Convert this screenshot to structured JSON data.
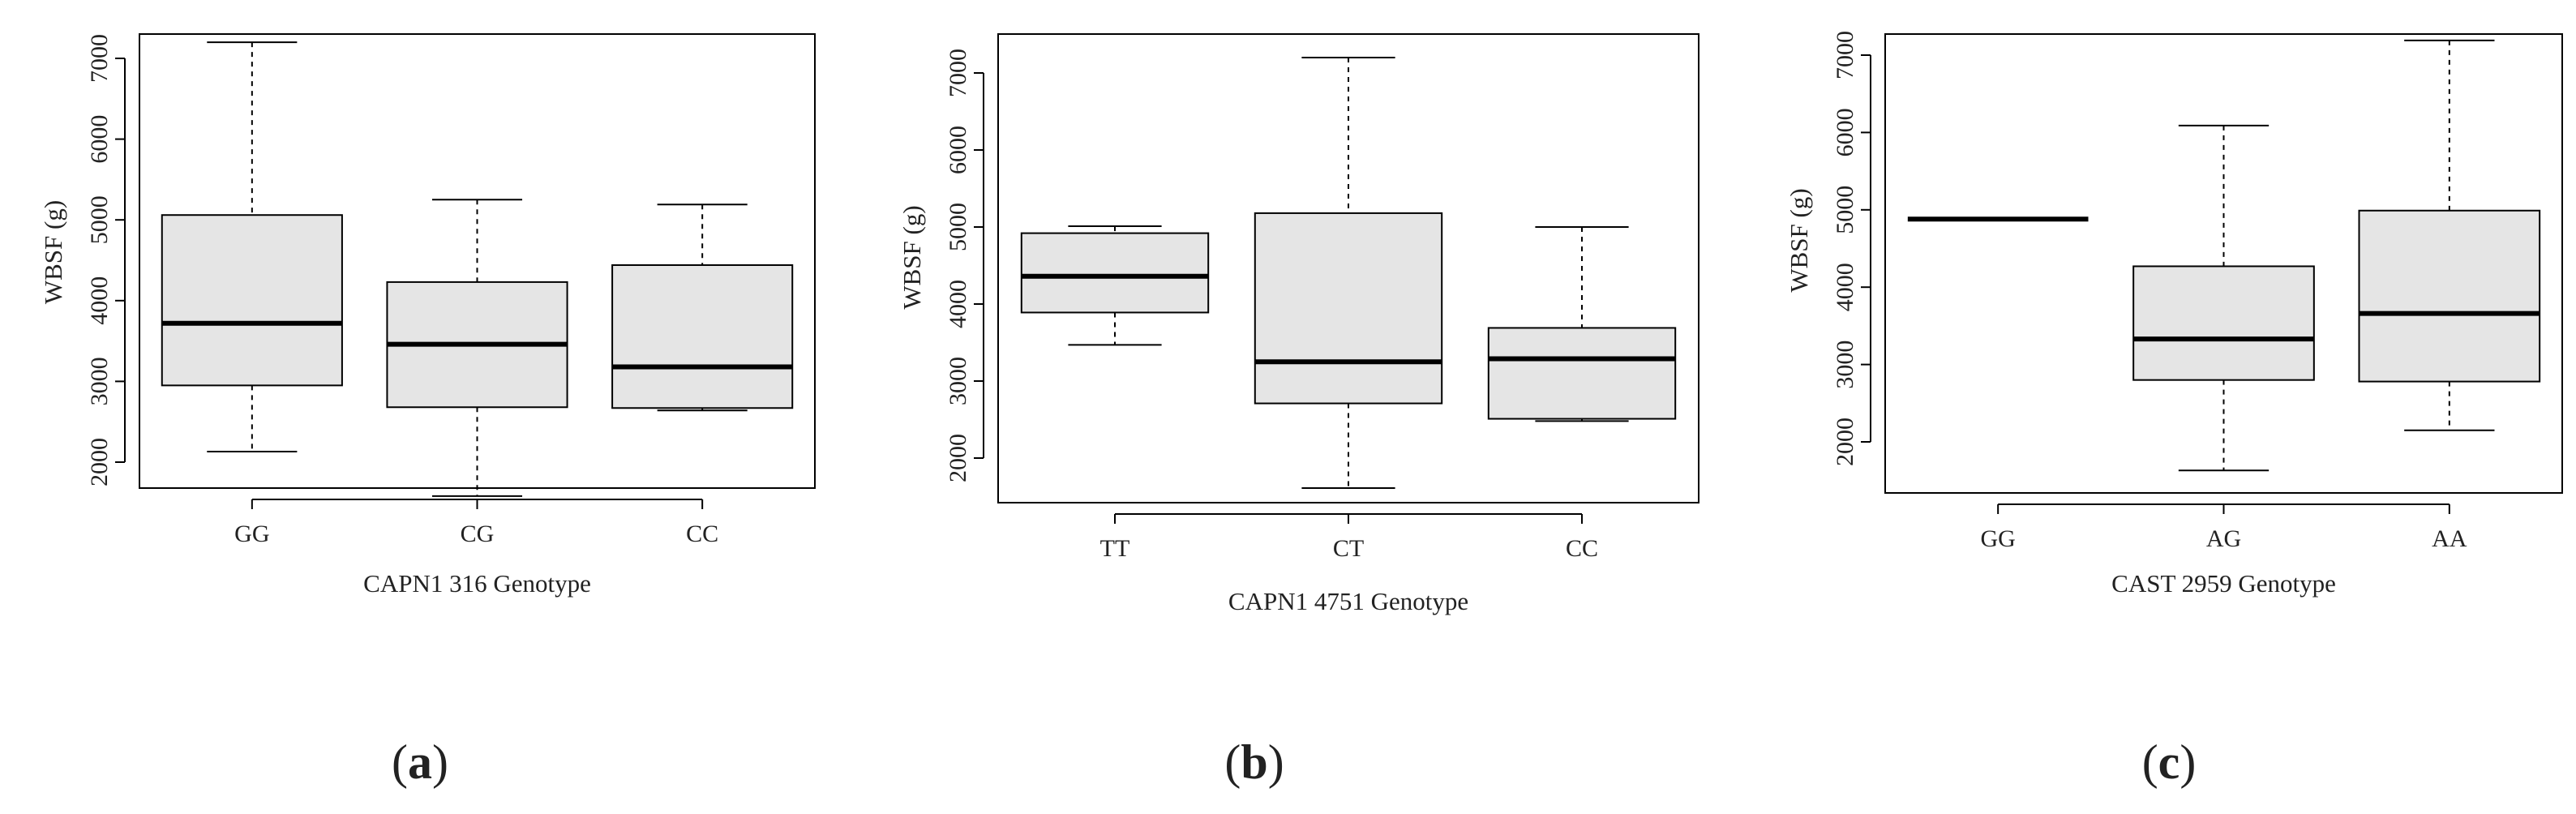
{
  "chart_data": [
    {
      "type": "box",
      "panel_label": "a",
      "xlabel": "CAPN1 316 Genotype",
      "ylabel": "WBSF (g)",
      "ylim": [
        1400,
        7400
      ],
      "yticks": [
        2000,
        3000,
        4000,
        5000,
        6000,
        7000
      ],
      "categories": [
        "GG",
        "CG",
        "CC"
      ],
      "boxes": [
        {
          "category": "GG",
          "min": 2130,
          "q1": 2950,
          "median": 3720,
          "q3": 5060,
          "max": 7200
        },
        {
          "category": "CG",
          "min": 1580,
          "q1": 2680,
          "median": 3460,
          "q3": 4230,
          "max": 5250
        },
        {
          "category": "CC",
          "min": 2640,
          "q1": 2670,
          "median": 3180,
          "q3": 4440,
          "max": 5190
        }
      ],
      "fill_color": "#e5e5e5"
    },
    {
      "type": "box",
      "panel_label": "b",
      "xlabel": "CAPN1 4751 Genotype",
      "ylabel": "WBSF (g)",
      "ylim": [
        1400,
        7400
      ],
      "yticks": [
        2000,
        3000,
        4000,
        5000,
        6000,
        7000
      ],
      "categories": [
        "TT",
        "CT",
        "CC"
      ],
      "boxes": [
        {
          "category": "TT",
          "min": 3470,
          "q1": 3890,
          "median": 4360,
          "q3": 4920,
          "max": 5010
        },
        {
          "category": "CT",
          "min": 1610,
          "q1": 2710,
          "median": 3250,
          "q3": 5180,
          "max": 7200
        },
        {
          "category": "CC",
          "min": 2480,
          "q1": 2510,
          "median": 3290,
          "q3": 3690,
          "max": 5000
        }
      ],
      "fill_color": "#e5e5e5"
    },
    {
      "type": "box",
      "panel_label": "c",
      "xlabel": "CAST 2959 Genotype",
      "ylabel": "WBSF (g)",
      "ylim": [
        1400,
        7400
      ],
      "yticks": [
        2000,
        3000,
        4000,
        5000,
        6000,
        7000
      ],
      "categories": [
        "GG",
        "AG",
        "AA"
      ],
      "boxes": [
        {
          "category": "GG",
          "min": 4880,
          "q1": 4880,
          "median": 4880,
          "q3": 4880,
          "max": 4880
        },
        {
          "category": "AG",
          "min": 1630,
          "q1": 2800,
          "median": 3330,
          "q3": 4270,
          "max": 6090
        },
        {
          "category": "AA",
          "min": 2150,
          "q1": 2780,
          "median": 3660,
          "q3": 4990,
          "max": 7190
        }
      ],
      "fill_color": "#e5e5e5"
    }
  ]
}
